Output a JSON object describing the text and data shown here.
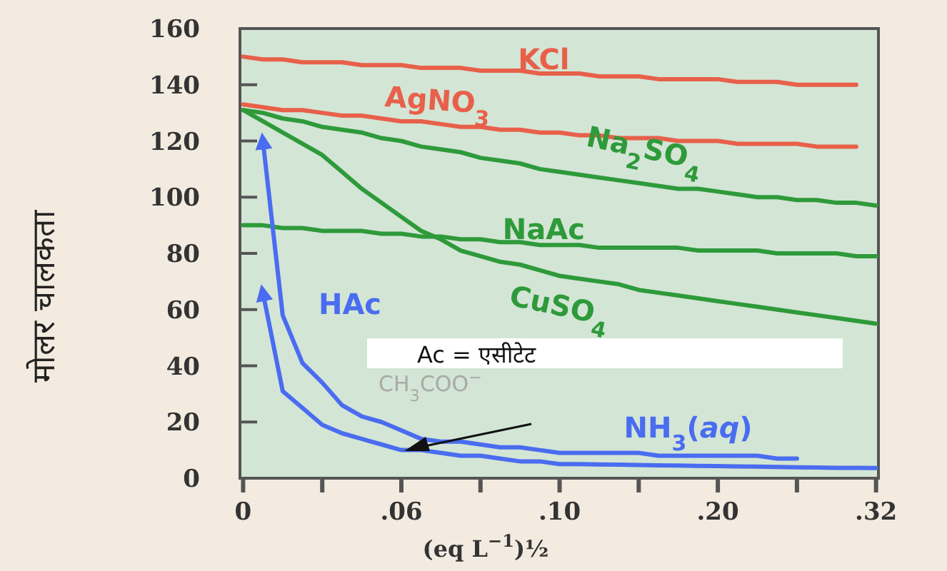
{
  "chart_data": {
    "type": "line",
    "xlabel": "(eq  L$^{−1}$)½",
    "ylabel": "मोलर चालकता",
    "categories": [
      "0",
      null,
      null,
      null,
      null,
      null,
      null,
      null,
      ".06",
      null,
      null,
      null,
      null,
      null,
      null,
      null,
      ".10",
      null,
      null,
      null,
      null,
      null,
      null,
      null,
      ".20",
      null,
      null,
      null,
      null,
      null,
      null,
      null,
      ".32"
    ],
    "ylim": [
      0,
      160
    ],
    "yticks": [
      0,
      20,
      40,
      60,
      80,
      100,
      120,
      140,
      160
    ],
    "series": [
      {
        "name": "KCl",
        "color": "#e8604a",
        "values": [
          150,
          149,
          149,
          148,
          148,
          148,
          147,
          147,
          147,
          146,
          146,
          146,
          145,
          145,
          145,
          144,
          144,
          144,
          143,
          143,
          143,
          142,
          142,
          142,
          142,
          141,
          141,
          141,
          140,
          140,
          140,
          140,
          null
        ]
      },
      {
        "name": "AgNO$_{3}$",
        "color": "#e8604a",
        "values": [
          133,
          132,
          131,
          131,
          130,
          129,
          129,
          128,
          127,
          127,
          126,
          125,
          125,
          124,
          124,
          123,
          123,
          122,
          122,
          121,
          121,
          121,
          120,
          120,
          120,
          119,
          119,
          119,
          119,
          118,
          118,
          118,
          null
        ]
      },
      {
        "name": "Na$_{2}$SO$_{4}$",
        "color": "#2e9a3a",
        "values": [
          131,
          130,
          128,
          127,
          125,
          124,
          123,
          121,
          120,
          118,
          117,
          116,
          114,
          113,
          112,
          110,
          109,
          108,
          107,
          106,
          105,
          104,
          103,
          103,
          102,
          101,
          100,
          100,
          99,
          99,
          98,
          98,
          97
        ]
      },
      {
        "name": "NaAc",
        "color": "#2e9a3a",
        "values": [
          90,
          90,
          89,
          89,
          88,
          88,
          88,
          87,
          87,
          86,
          86,
          85,
          85,
          84,
          84,
          83,
          83,
          83,
          82,
          82,
          82,
          82,
          82,
          81,
          81,
          81,
          81,
          80,
          80,
          80,
          80,
          79,
          79
        ]
      },
      {
        "name": "CuSO$_{4}$",
        "color": "#2e9a3a",
        "values": [
          131,
          127,
          123,
          119,
          115,
          109,
          103,
          98,
          93,
          88,
          85,
          81,
          79,
          77,
          76,
          74,
          72,
          71,
          70,
          69,
          67,
          66,
          65,
          64,
          63,
          62,
          61,
          60,
          59,
          58,
          57,
          56,
          55
        ]
      },
      {
        "name": "HAc",
        "color": "#4a6cf0",
        "values": [
          null,
          120,
          58,
          41,
          34,
          26,
          22,
          20,
          17,
          14,
          13,
          13,
          12,
          11,
          11,
          10,
          9,
          9,
          9,
          9,
          9,
          8,
          8,
          8,
          8,
          8,
          8,
          7,
          7,
          null,
          null,
          null,
          null
        ]
      },
      {
        "name": "NH$_{3}$(*aq*)",
        "color": "#4a6cf0",
        "values": [
          null,
          66,
          31,
          25,
          19,
          16,
          14,
          12,
          10,
          10,
          9,
          8,
          8,
          7,
          6,
          6,
          5,
          5.0,
          4.9,
          4.8,
          4.7,
          4.6,
          4.5,
          4.4,
          4.3,
          4.2,
          4.1,
          4.0,
          3.9,
          3.8,
          3.7,
          3.7,
          3.6
        ]
      }
    ],
    "annotations": [
      "Ac =  एसीटेट",
      "CH$_{3}$COO$^{−}$"
    ]
  }
}
